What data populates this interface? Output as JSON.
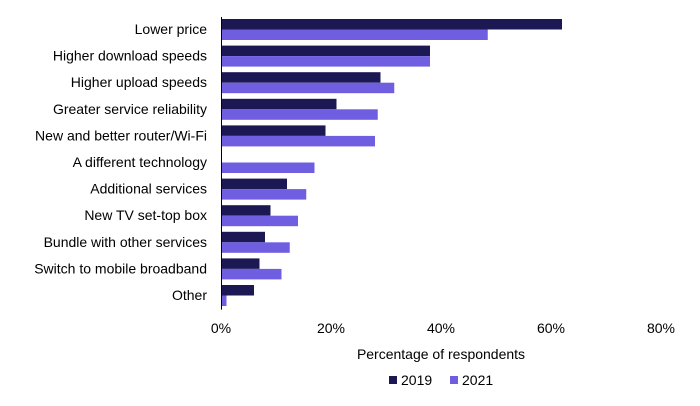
{
  "chart_data": {
    "type": "bar",
    "orientation": "horizontal",
    "categories": [
      "Lower price",
      "Higher download speeds",
      "Higher upload speeds",
      "Greater service reliability",
      "New and better router/Wi-Fi",
      "A different technology",
      "Additional services",
      "New TV set-top box",
      "Bundle with other services",
      "Switch to mobile broadband",
      "Other"
    ],
    "series": [
      {
        "name": "2019",
        "color": "#1b1853",
        "values": [
          62,
          38,
          29,
          21,
          19,
          null,
          12,
          9,
          8,
          7,
          6
        ]
      },
      {
        "name": "2021",
        "color": "#6f5fe0",
        "values": [
          48.5,
          38,
          31.5,
          28.5,
          28,
          17,
          15.5,
          14,
          12.5,
          11,
          1
        ]
      }
    ],
    "xlabel": "Percentage of respondents",
    "xlim": [
      0,
      80
    ],
    "xticks": [
      0,
      20,
      40,
      60,
      80
    ],
    "xtick_labels": [
      "0%",
      "20%",
      "40%",
      "60%",
      "80%"
    ],
    "grid": false,
    "legend_position": "bottom"
  }
}
